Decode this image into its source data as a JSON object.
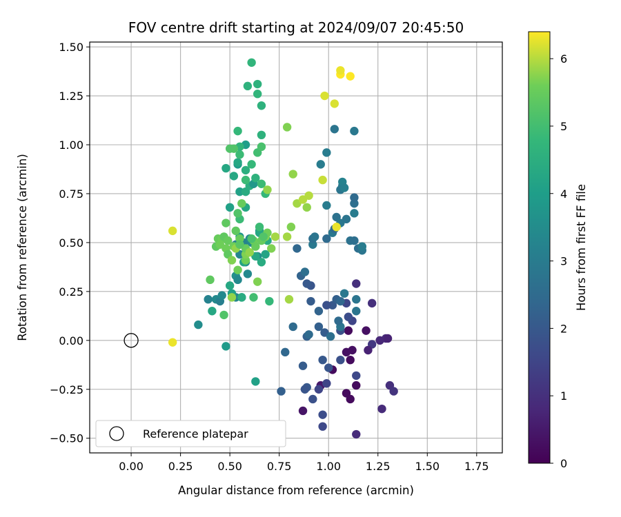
{
  "chart_data": {
    "type": "scatter",
    "title": "FOV centre drift starting at 2024/09/07 20:45:50",
    "xlabel": "Angular distance from reference (arcmin)",
    "ylabel": "Rotation from reference (arcmin)",
    "xlim": [
      -0.21,
      1.88
    ],
    "ylim": [
      -0.575,
      1.525
    ],
    "xticks": [
      "0.00",
      "0.25",
      "0.50",
      "0.75",
      "1.00",
      "1.25",
      "1.50",
      "1.75"
    ],
    "xtick_values": [
      0,
      0.25,
      0.5,
      0.75,
      1.0,
      1.25,
      1.5,
      1.75
    ],
    "yticks": [
      "−0.50",
      "−0.25",
      "0.00",
      "0.25",
      "0.50",
      "0.75",
      "1.00",
      "1.25",
      "1.50"
    ],
    "ytick_values": [
      -0.5,
      -0.25,
      0,
      0.25,
      0.5,
      0.75,
      1.0,
      1.25,
      1.5
    ],
    "grid": true,
    "colormap": "viridis",
    "colorbar": {
      "label": "Hours from first FF file",
      "range": [
        0,
        6.4
      ],
      "ticks": [
        "0",
        "1",
        "2",
        "3",
        "4",
        "5",
        "6"
      ],
      "tick_values": [
        0,
        1,
        2,
        3,
        4,
        5,
        6
      ]
    },
    "legend": {
      "placement": "lower-left",
      "entries": [
        "Reference platepar"
      ]
    },
    "reference_point": {
      "x": 0,
      "y": 0
    },
    "points": [
      [
        1.1,
        0.05,
        0.2
      ],
      [
        1.09,
        -0.06,
        0.3
      ],
      [
        1.11,
        -0.1,
        0.2
      ],
      [
        1.12,
        -0.05,
        0.3
      ],
      [
        1.09,
        -0.27,
        0.2
      ],
      [
        1.11,
        -0.3,
        0.2
      ],
      [
        1.14,
        -0.23,
        0.2
      ],
      [
        1.14,
        -0.48,
        0.9
      ],
      [
        1.02,
        -0.15,
        0.2
      ],
      [
        0.87,
        -0.36,
        0.4
      ],
      [
        0.96,
        -0.23,
        0.5
      ],
      [
        1.27,
        -0.35,
        0.9
      ],
      [
        1.31,
        -0.23,
        1.0
      ],
      [
        1.33,
        -0.26,
        1.1
      ],
      [
        1.29,
        0.01,
        0.9
      ],
      [
        1.26,
        0.0,
        0.8
      ],
      [
        1.3,
        0.01,
        0.7
      ],
      [
        1.22,
        -0.02,
        1.2
      ],
      [
        1.19,
        0.05,
        0.3
      ],
      [
        1.2,
        -0.05,
        0.7
      ],
      [
        1.22,
        0.19,
        1.0
      ],
      [
        1.14,
        0.29,
        1.0
      ],
      [
        1.09,
        0.19,
        1.5
      ],
      [
        1.12,
        0.1,
        1.5
      ],
      [
        1.14,
        -0.18,
        1.6
      ],
      [
        1.06,
        -0.1,
        1.8
      ],
      [
        1.0,
        -0.14,
        1.9
      ],
      [
        0.97,
        -0.38,
        1.7
      ],
      [
        0.97,
        -0.44,
        1.6
      ],
      [
        0.99,
        -0.22,
        1.5
      ],
      [
        0.95,
        -0.25,
        1.5
      ],
      [
        0.92,
        -0.3,
        1.8
      ],
      [
        0.89,
        -0.24,
        2.0
      ],
      [
        0.88,
        -0.25,
        1.9
      ],
      [
        0.76,
        -0.26,
        2.2
      ],
      [
        0.87,
        -0.13,
        2.1
      ],
      [
        0.97,
        -0.1,
        2.0
      ],
      [
        0.78,
        -0.06,
        2.4
      ],
      [
        0.82,
        0.07,
        2.5
      ],
      [
        0.89,
        0.02,
        2.2
      ],
      [
        0.9,
        0.03,
        2.5
      ],
      [
        0.95,
        0.07,
        2.2
      ],
      [
        0.98,
        0.04,
        2.1
      ],
      [
        1.01,
        0.02,
        2.6
      ],
      [
        1.06,
        0.05,
        1.8
      ],
      [
        1.06,
        0.07,
        2.8
      ],
      [
        1.05,
        0.1,
        2.5
      ],
      [
        1.02,
        0.18,
        2.0
      ],
      [
        0.99,
        0.18,
        1.8
      ],
      [
        1.04,
        0.21,
        2.2
      ],
      [
        1.06,
        0.2,
        2.4
      ],
      [
        1.08,
        0.24,
        2.9
      ],
      [
        1.1,
        0.12,
        1.7
      ],
      [
        1.14,
        0.15,
        2.8
      ],
      [
        1.14,
        0.21,
        2.8
      ],
      [
        0.95,
        0.15,
        2.3
      ],
      [
        0.91,
        0.2,
        2.1
      ],
      [
        0.91,
        0.28,
        1.9
      ],
      [
        0.89,
        0.29,
        2.0
      ],
      [
        0.86,
        0.33,
        2.3
      ],
      [
        0.88,
        0.35,
        2.6
      ],
      [
        0.84,
        0.47,
        2.4
      ],
      [
        0.92,
        0.49,
        2.9
      ],
      [
        0.92,
        0.52,
        2.6
      ],
      [
        0.93,
        0.53,
        2.8
      ],
      [
        0.99,
        0.52,
        2.5
      ],
      [
        1.02,
        0.55,
        2.9
      ],
      [
        1.03,
        0.57,
        2.5
      ],
      [
        1.04,
        0.63,
        2.7
      ],
      [
        1.06,
        0.6,
        2.9
      ],
      [
        1.09,
        0.62,
        2.8
      ],
      [
        1.11,
        0.51,
        2.7
      ],
      [
        1.13,
        0.51,
        2.6
      ],
      [
        1.15,
        0.47,
        2.6
      ],
      [
        1.17,
        0.46,
        2.8
      ],
      [
        1.17,
        0.48,
        3.0
      ],
      [
        1.13,
        0.65,
        3.0
      ],
      [
        1.13,
        0.7,
        2.6
      ],
      [
        1.13,
        0.73,
        2.5
      ],
      [
        1.06,
        0.77,
        2.8
      ],
      [
        1.07,
        0.79,
        2.9
      ],
      [
        1.07,
        0.81,
        3.2
      ],
      [
        1.08,
        0.78,
        3.1
      ],
      [
        0.99,
        0.69,
        3.0
      ],
      [
        0.96,
        0.9,
        3.0
      ],
      [
        0.99,
        0.96,
        3.0
      ],
      [
        1.03,
        1.08,
        2.8
      ],
      [
        1.13,
        1.07,
        2.9
      ],
      [
        0.34,
        0.08,
        3.5
      ],
      [
        0.39,
        0.21,
        3.2
      ],
      [
        0.43,
        0.21,
        3.4
      ],
      [
        0.45,
        0.2,
        3.1
      ],
      [
        0.46,
        0.23,
        3.4
      ],
      [
        0.53,
        0.22,
        3.3
      ],
      [
        0.56,
        0.22,
        3.5
      ],
      [
        0.53,
        0.33,
        3.6
      ],
      [
        0.54,
        0.31,
        3.4
      ],
      [
        0.59,
        0.34,
        3.4
      ],
      [
        0.58,
        0.4,
        3.4
      ],
      [
        0.55,
        0.44,
        3.3
      ],
      [
        0.53,
        0.49,
        3.2
      ],
      [
        0.57,
        0.5,
        3.2
      ],
      [
        0.6,
        0.52,
        3.4
      ],
      [
        0.61,
        0.5,
        3.4
      ],
      [
        0.64,
        0.43,
        3.5
      ],
      [
        0.65,
        0.56,
        3.6
      ],
      [
        0.55,
        0.53,
        3.8
      ],
      [
        0.48,
        -0.03,
        3.9
      ],
      [
        0.63,
        -0.21,
        4.1
      ],
      [
        0.41,
        0.15,
        4.3
      ],
      [
        0.5,
        0.28,
        4.3
      ],
      [
        0.51,
        0.24,
        4.1
      ],
      [
        0.56,
        0.22,
        4.4
      ],
      [
        0.57,
        0.4,
        4.2
      ],
      [
        0.63,
        0.43,
        4.3
      ],
      [
        0.66,
        0.4,
        4.4
      ],
      [
        0.68,
        0.44,
        4.2
      ],
      [
        0.65,
        0.55,
        4.3
      ],
      [
        0.69,
        0.51,
        4.4
      ],
      [
        0.55,
        0.76,
        4.1
      ],
      [
        0.58,
        0.68,
        4.3
      ],
      [
        0.5,
        0.68,
        4.1
      ],
      [
        0.52,
        0.84,
        4.3
      ],
      [
        0.54,
        0.9,
        3.9
      ],
      [
        0.54,
        0.91,
        4.3
      ],
      [
        0.48,
        0.88,
        4.3
      ],
      [
        0.58,
        0.76,
        4.4
      ],
      [
        0.6,
        0.79,
        4.5
      ],
      [
        0.62,
        0.8,
        3.8
      ],
      [
        0.63,
        0.83,
        4.6
      ],
      [
        0.58,
        0.87,
        4.5
      ],
      [
        0.58,
        1.0,
        4.0
      ],
      [
        0.61,
        0.9,
        4.8
      ],
      [
        0.55,
        0.95,
        4.9
      ],
      [
        0.55,
        0.99,
        4.7
      ],
      [
        0.52,
        0.98,
        5.2
      ],
      [
        0.5,
        0.98,
        5.2
      ],
      [
        0.58,
        0.82,
        4.9
      ],
      [
        0.64,
        0.96,
        5.0
      ],
      [
        0.66,
        0.99,
        5.1
      ],
      [
        0.66,
        1.05,
        4.6
      ],
      [
        0.54,
        1.07,
        4.8
      ],
      [
        0.66,
        1.2,
        4.6
      ],
      [
        0.64,
        1.26,
        4.7
      ],
      [
        0.59,
        1.3,
        4.6
      ],
      [
        0.64,
        1.31,
        4.6
      ],
      [
        0.61,
        1.42,
        4.7
      ],
      [
        0.66,
        0.8,
        4.9
      ],
      [
        0.68,
        0.75,
        4.8
      ],
      [
        0.55,
        0.62,
        4.9
      ],
      [
        0.48,
        0.6,
        5.4
      ],
      [
        0.54,
        0.65,
        5.2
      ],
      [
        0.56,
        0.7,
        5.5
      ],
      [
        0.69,
        0.77,
        5.8
      ],
      [
        0.79,
        1.09,
        5.7
      ],
      [
        0.82,
        0.85,
        5.8
      ],
      [
        0.84,
        0.7,
        5.9
      ],
      [
        0.87,
        0.72,
        6.0
      ],
      [
        0.89,
        0.68,
        5.8
      ],
      [
        0.9,
        0.74,
        6.0
      ],
      [
        0.97,
        0.82,
        6.1
      ],
      [
        1.04,
        0.58,
        6.3
      ],
      [
        1.03,
        1.21,
        6.2
      ],
      [
        0.98,
        1.25,
        6.2
      ],
      [
        1.06,
        1.36,
        6.4
      ],
      [
        1.06,
        1.38,
        6.3
      ],
      [
        1.11,
        1.35,
        6.4
      ],
      [
        0.21,
        0.56,
        6.2
      ],
      [
        0.21,
        -0.01,
        6.3
      ],
      [
        0.43,
        0.48,
        5.4
      ],
      [
        0.44,
        0.52,
        5.5
      ],
      [
        0.45,
        0.49,
        5.6
      ],
      [
        0.46,
        0.52,
        5.6
      ],
      [
        0.47,
        0.53,
        5.4
      ],
      [
        0.48,
        0.47,
        5.6
      ],
      [
        0.49,
        0.44,
        5.4
      ],
      [
        0.49,
        0.51,
        5.5
      ],
      [
        0.51,
        0.41,
        5.7
      ],
      [
        0.52,
        0.48,
        5.6
      ],
      [
        0.53,
        0.47,
        5.8
      ],
      [
        0.53,
        0.56,
        5.4
      ],
      [
        0.55,
        0.49,
        5.7
      ],
      [
        0.55,
        0.52,
        5.5
      ],
      [
        0.58,
        0.41,
        5.6
      ],
      [
        0.58,
        0.44,
        5.7
      ],
      [
        0.58,
        0.47,
        5.5
      ],
      [
        0.6,
        0.45,
        5.8
      ],
      [
        0.62,
        0.51,
        5.6
      ],
      [
        0.63,
        0.48,
        5.5
      ],
      [
        0.66,
        0.51,
        5.5
      ],
      [
        0.68,
        0.53,
        5.7
      ],
      [
        0.69,
        0.55,
        5.6
      ],
      [
        0.71,
        0.47,
        5.7
      ],
      [
        0.73,
        0.53,
        5.9
      ],
      [
        0.79,
        0.53,
        5.9
      ],
      [
        0.81,
        0.58,
        5.7
      ],
      [
        0.8,
        0.21,
        5.9
      ],
      [
        0.64,
        0.3,
        5.7
      ],
      [
        0.54,
        0.36,
        5.6
      ],
      [
        0.51,
        0.22,
        5.8
      ],
      [
        0.4,
        0.31,
        5.4
      ],
      [
        0.47,
        0.13,
        5.2
      ],
      [
        0.62,
        0.22,
        5.0
      ],
      [
        0.7,
        0.2,
        4.8
      ],
      [
        0.65,
        0.58,
        4.9
      ],
      [
        0.67,
        0.53,
        5.2
      ],
      [
        0.61,
        0.52,
        5.1
      ],
      [
        0.55,
        0.49,
        5.3
      ]
    ]
  }
}
